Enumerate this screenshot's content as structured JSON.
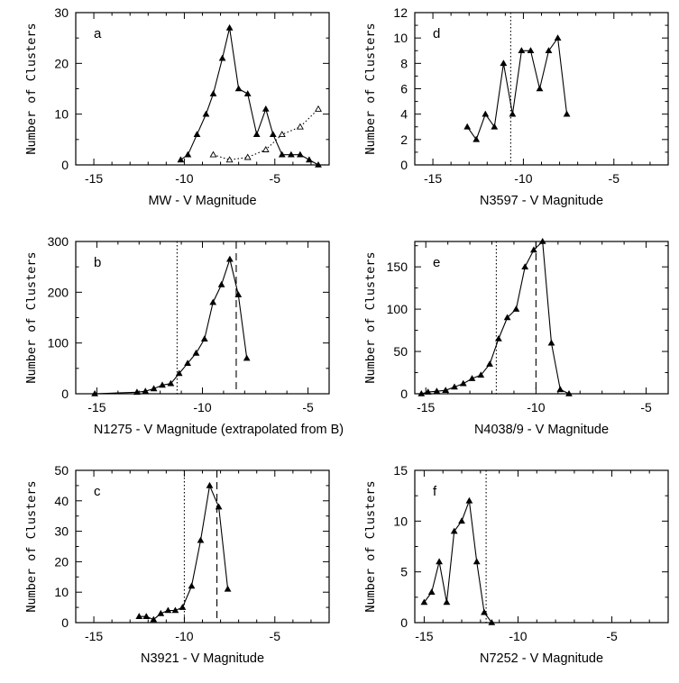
{
  "chart_data": [
    {
      "type": "line",
      "panel": "a",
      "xlabel": "MW - V Magnitude",
      "ylabel": "Number of Clusters",
      "xlim": [
        -16,
        -2
      ],
      "ylim": [
        0,
        30
      ],
      "xticks": [
        -15,
        -10,
        -5
      ],
      "yticks": [
        0,
        10,
        20,
        30
      ],
      "series": [
        {
          "style": "solid-filled",
          "x": [
            -10.2,
            -9.8,
            -9.3,
            -8.8,
            -8.4,
            -7.9,
            -7.5,
            -7.0,
            -6.5,
            -6.0,
            -5.5,
            -5.1,
            -4.6,
            -4.1,
            -3.6,
            -3.1,
            -2.6
          ],
          "y": [
            1,
            2,
            6,
            10,
            14,
            21,
            27,
            15,
            14,
            6,
            11,
            6,
            2,
            2,
            2,
            1,
            0
          ]
        },
        {
          "style": "dotted-open",
          "x": [
            -8.4,
            -7.5,
            -6.5,
            -5.5,
            -4.6,
            -3.6,
            -2.6
          ],
          "y": [
            2,
            1,
            1.5,
            3,
            6,
            7.5,
            11
          ]
        }
      ],
      "vlines": []
    },
    {
      "type": "line",
      "panel": "d",
      "xlabel": "N3597 - V Magnitude",
      "ylabel": "Number of Clusters",
      "xlim": [
        -16,
        -2
      ],
      "ylim": [
        0,
        12
      ],
      "xticks": [
        -15,
        -10,
        -5
      ],
      "yticks": [
        0,
        2,
        4,
        6,
        8,
        10,
        12
      ],
      "series": [
        {
          "style": "solid-filled",
          "x": [
            -13.1,
            -12.6,
            -12.1,
            -11.6,
            -11.1,
            -10.6,
            -10.1,
            -9.6,
            -9.1,
            -8.6,
            -8.1,
            -7.6
          ],
          "y": [
            3,
            2,
            4,
            3,
            8,
            4,
            9,
            9,
            6,
            9,
            10,
            4
          ]
        }
      ],
      "vlines": [
        {
          "x": -10.7,
          "style": "dotted"
        }
      ]
    },
    {
      "type": "line",
      "panel": "b",
      "xlabel": "N1275 - V Magnitude (extrapolated from B)",
      "ylabel": "Number of Clusters",
      "xlim": [
        -16,
        -4
      ],
      "ylim": [
        0,
        300
      ],
      "xticks": [
        -15,
        -10,
        -5
      ],
      "yticks": [
        0,
        100,
        200,
        300
      ],
      "series": [
        {
          "style": "solid-filled",
          "x": [
            -15.1,
            -13.1,
            -12.7,
            -12.3,
            -11.9,
            -11.5,
            -11.1,
            -10.7,
            -10.3,
            -9.9,
            -9.5,
            -9.1,
            -8.7,
            -8.3,
            -7.9
          ],
          "y": [
            0,
            3,
            5,
            10,
            17,
            20,
            40,
            60,
            80,
            108,
            180,
            215,
            265,
            195,
            70
          ]
        }
      ],
      "vlines": [
        {
          "x": -11.2,
          "style": "dotted"
        },
        {
          "x": -8.4,
          "style": "dashed"
        }
      ]
    },
    {
      "type": "line",
      "panel": "e",
      "xlabel": "N4038/9 - V Magnitude",
      "ylabel": "Number of Clusters",
      "xlim": [
        -15.5,
        -4
      ],
      "ylim": [
        0,
        180
      ],
      "xticks": [
        -15,
        -10,
        -5
      ],
      "yticks": [
        0,
        50,
        100,
        150
      ],
      "series": [
        {
          "style": "solid-filled",
          "x": [
            -15.2,
            -14.9,
            -14.5,
            -14.1,
            -13.7,
            -13.3,
            -12.9,
            -12.5,
            -12.1,
            -11.7,
            -11.3,
            -10.9,
            -10.5,
            -10.1,
            -9.7,
            -9.3,
            -8.9,
            -8.5
          ],
          "y": [
            0,
            2,
            3,
            4,
            8,
            12,
            18,
            22,
            35,
            65,
            90,
            100,
            150,
            170,
            180,
            60,
            5,
            0
          ]
        }
      ],
      "vlines": [
        {
          "x": -11.8,
          "style": "dotted"
        },
        {
          "x": -10.0,
          "style": "dashed"
        }
      ]
    },
    {
      "type": "line",
      "panel": "c",
      "xlabel": "N3921 - V Magnitude",
      "ylabel": "Number of Clusters",
      "xlim": [
        -16,
        -2
      ],
      "ylim": [
        0,
        50
      ],
      "xticks": [
        -15,
        -10,
        -5
      ],
      "yticks": [
        0,
        10,
        20,
        30,
        40,
        50
      ],
      "series": [
        {
          "style": "solid-filled",
          "x": [
            -12.5,
            -12.1,
            -11.7,
            -11.3,
            -10.9,
            -10.5,
            -10.1,
            -9.6,
            -9.1,
            -8.6,
            -8.1,
            -7.6
          ],
          "y": [
            2,
            2,
            1,
            3,
            4,
            4,
            5,
            12,
            27,
            45,
            38,
            11
          ]
        }
      ],
      "vlines": [
        {
          "x": -10.0,
          "style": "dotted"
        },
        {
          "x": -8.2,
          "style": "dashed"
        }
      ]
    },
    {
      "type": "line",
      "panel": "f",
      "xlabel": "N7252 - V Magnitude",
      "ylabel": "Number of Clusters",
      "xlim": [
        -15.5,
        -2
      ],
      "ylim": [
        0,
        15
      ],
      "xticks": [
        -15,
        -10,
        -5
      ],
      "yticks": [
        0,
        5,
        10,
        15
      ],
      "series": [
        {
          "style": "solid-filled",
          "x": [
            -15.0,
            -14.6,
            -14.2,
            -13.8,
            -13.4,
            -13.0,
            -12.6,
            -12.2,
            -11.8,
            -11.4
          ],
          "y": [
            2,
            3,
            6,
            2,
            9,
            10,
            12,
            6,
            1,
            0
          ]
        }
      ],
      "vlines": [
        {
          "x": -11.7,
          "style": "dotted"
        }
      ]
    }
  ]
}
